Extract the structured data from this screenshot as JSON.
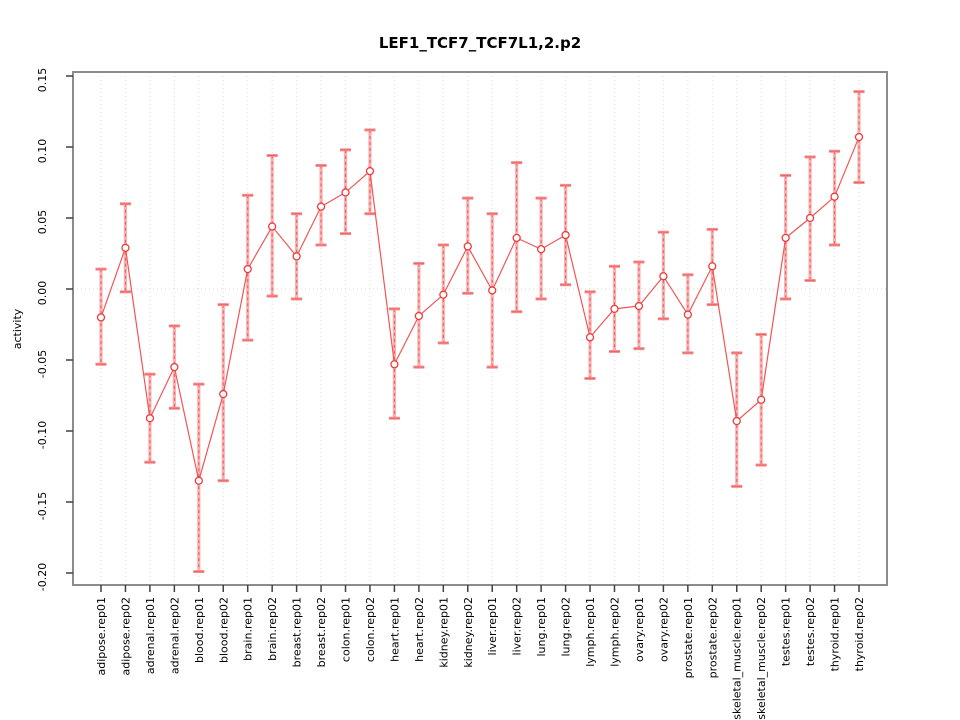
{
  "page": {
    "background_color": "#ffffff"
  },
  "chart_data": {
    "type": "line",
    "title": "LEF1_TCF7_TCF7L1,2.p2",
    "xlabel": "",
    "ylabel": "activity",
    "ylim": [
      -0.2,
      0.15
    ],
    "yticks": [
      0.15,
      0.1,
      0.05,
      0.0,
      -0.05,
      -0.1,
      -0.15,
      -0.2
    ],
    "grid": "dotted vertical line at every category; dotted horizontal line at y=0",
    "legend_position": "none",
    "point_style": "open-circle with error bars",
    "categories": [
      "adipose.rep01",
      "adipose.rep02",
      "adrenal.rep01",
      "adrenal.rep02",
      "blood.rep01",
      "blood.rep02",
      "brain.rep01",
      "brain.rep02",
      "breast.rep01",
      "breast.rep02",
      "colon.rep01",
      "colon.rep02",
      "heart.rep01",
      "heart.rep02",
      "kidney.rep01",
      "kidney.rep02",
      "liver.rep01",
      "liver.rep02",
      "lung.rep01",
      "lung.rep02",
      "lymph.rep01",
      "lymph.rep02",
      "ovary.rep01",
      "ovary.rep02",
      "prostate.rep01",
      "prostate.rep02",
      "skeletal_muscle.rep01",
      "skeletal_muscle.rep02",
      "testes.rep01",
      "testes.rep02",
      "thyroid.rep01",
      "thyroid.rep02"
    ],
    "values": [
      -0.02,
      0.029,
      -0.091,
      -0.055,
      -0.135,
      -0.074,
      0.014,
      0.044,
      0.023,
      0.058,
      0.068,
      0.083,
      -0.053,
      -0.019,
      -0.004,
      0.03,
      -0.001,
      0.036,
      0.028,
      0.038,
      -0.034,
      -0.014,
      -0.012,
      0.009,
      -0.018,
      0.016,
      -0.093,
      -0.078,
      0.036,
      0.05,
      0.065,
      0.107
    ],
    "ci_high": [
      0.014,
      0.06,
      -0.06,
      -0.026,
      -0.067,
      -0.011,
      0.066,
      0.094,
      0.053,
      0.087,
      0.098,
      0.112,
      -0.014,
      0.018,
      0.031,
      0.064,
      0.053,
      0.089,
      0.064,
      0.073,
      -0.002,
      0.016,
      0.019,
      0.04,
      0.01,
      0.042,
      -0.045,
      -0.032,
      0.08,
      0.093,
      0.097,
      0.139
    ],
    "ci_low": [
      -0.053,
      -0.002,
      -0.122,
      -0.084,
      -0.199,
      -0.135,
      -0.036,
      -0.005,
      -0.007,
      0.031,
      0.039,
      0.053,
      -0.091,
      -0.055,
      -0.038,
      -0.003,
      -0.055,
      -0.016,
      -0.007,
      0.003,
      -0.063,
      -0.044,
      -0.042,
      -0.021,
      -0.045,
      -0.011,
      -0.139,
      -0.124,
      -0.007,
      0.006,
      0.031,
      0.075
    ],
    "colors": {
      "series_line": "#f25555",
      "point_stroke": "#ee3a3a",
      "point_fill": "#ffffff",
      "ci_thick": "#f8b0b0",
      "ci_dash": "#f05050",
      "ci_cap": "#f59090",
      "gridline": "#dcdcdc",
      "zero_line": "#d8d8d8",
      "frame": "#8c8c8c",
      "tick": "#404040",
      "text": "#000000"
    }
  }
}
